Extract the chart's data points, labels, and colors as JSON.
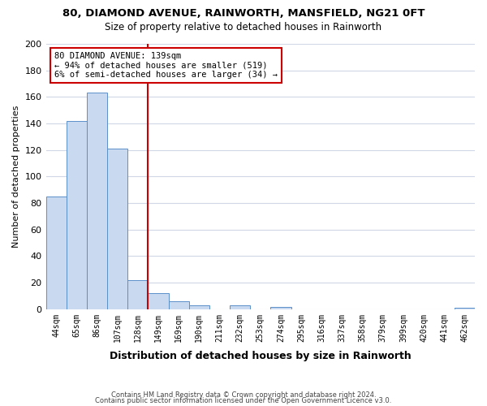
{
  "title": "80, DIAMOND AVENUE, RAINWORTH, MANSFIELD, NG21 0FT",
  "subtitle": "Size of property relative to detached houses in Rainworth",
  "xlabel": "Distribution of detached houses by size in Rainworth",
  "ylabel": "Number of detached properties",
  "bar_labels": [
    "44sqm",
    "65sqm",
    "86sqm",
    "107sqm",
    "128sqm",
    "149sqm",
    "169sqm",
    "190sqm",
    "211sqm",
    "232sqm",
    "253sqm",
    "274sqm",
    "295sqm",
    "316sqm",
    "337sqm",
    "358sqm",
    "379sqm",
    "399sqm",
    "420sqm",
    "441sqm",
    "462sqm"
  ],
  "bar_heights": [
    85,
    142,
    163,
    121,
    22,
    12,
    6,
    3,
    0,
    3,
    0,
    2,
    0,
    0,
    0,
    0,
    0,
    0,
    0,
    0,
    1
  ],
  "bar_color": "#c9d9f0",
  "bar_edge_color": "#5b8fc9",
  "vline_pos": 4.5,
  "vline_color": "#cc0000",
  "ylim": [
    0,
    200
  ],
  "yticks": [
    0,
    20,
    40,
    60,
    80,
    100,
    120,
    140,
    160,
    180,
    200
  ],
  "annotation_title": "80 DIAMOND AVENUE: 139sqm",
  "annotation_line1": "← 94% of detached houses are smaller (519)",
  "annotation_line2": "6% of semi-detached houses are larger (34) →",
  "annotation_box_color": "#ffffff",
  "annotation_box_edge_color": "#cc0000",
  "footer_line1": "Contains HM Land Registry data © Crown copyright and database right 2024.",
  "footer_line2": "Contains public sector information licensed under the Open Government Licence v3.0.",
  "background_color": "#ffffff",
  "grid_color": "#d0d8e8"
}
